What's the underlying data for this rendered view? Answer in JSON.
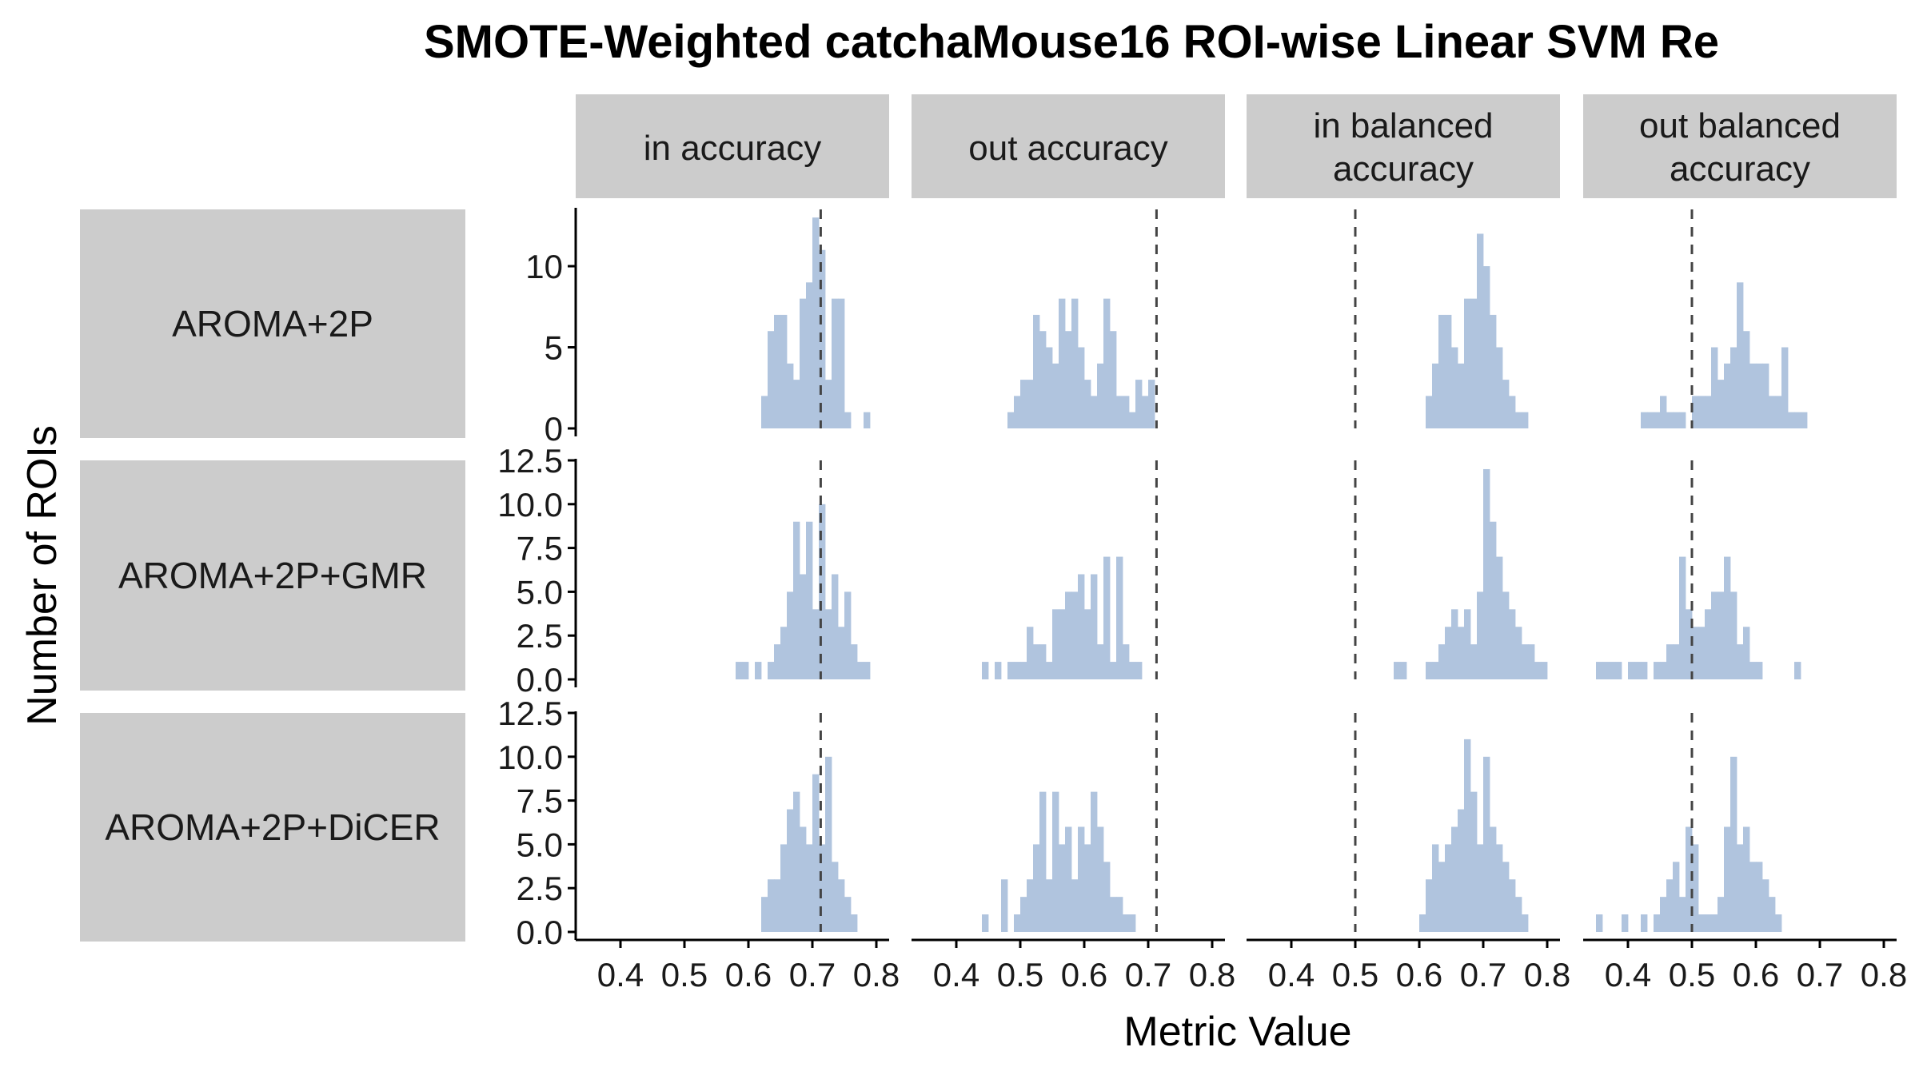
{
  "chart_data": {
    "type": "bar",
    "title": "SMOTE-Weighted catchaMouse16 ROI-wise Linear SVM Re",
    "xlabel": "Metric Value",
    "ylabel": "Number of ROIs",
    "x_ticks": [
      0.4,
      0.5,
      0.6,
      0.7,
      0.8
    ],
    "xlim": [
      0.33,
      0.82
    ],
    "bin_width": 0.01,
    "bar_color": "#b0c4de",
    "strip_color": "#cccccc",
    "reference_line": "dashed",
    "columns": [
      "in accuracy",
      "out accuracy",
      "in balanced accuracy",
      "out balanced accuracy"
    ],
    "rows": [
      "AROMA+2P",
      "AROMA+2P+GMR",
      "AROMA+2P+DiCER"
    ],
    "row_scales": [
      {
        "ylim": [
          0,
          13.5
        ],
        "ticks": [
          0,
          5,
          10
        ],
        "tick_labels": [
          "0",
          "5",
          "10"
        ]
      },
      {
        "ylim": [
          0,
          12.5
        ],
        "ticks": [
          0,
          2.5,
          5,
          7.5,
          10,
          12.5
        ],
        "tick_labels": [
          "0.0",
          "2.5",
          "5.0",
          "7.5",
          "10.0",
          "12.5"
        ]
      },
      {
        "ylim": [
          0,
          12.5
        ],
        "ticks": [
          0,
          2.5,
          5,
          7.5,
          10,
          12.5
        ],
        "tick_labels": [
          "0.0",
          "2.5",
          "5.0",
          "7.5",
          "10.0",
          "12.5"
        ]
      }
    ],
    "reference_values": [
      0.713,
      0.713,
      0.5,
      0.5
    ],
    "panels": [
      {
        "row": 0,
        "col": 0,
        "start": 0.62,
        "counts": [
          2,
          6,
          7,
          7,
          4,
          3,
          8,
          9,
          13,
          11,
          3,
          8,
          8,
          1,
          0,
          0,
          1
        ]
      },
      {
        "row": 0,
        "col": 1,
        "start": 0.48,
        "counts": [
          1,
          2,
          3,
          3,
          7,
          6,
          5,
          4,
          8,
          6,
          8,
          5,
          3,
          2,
          4,
          8,
          6,
          2,
          2,
          1,
          3,
          2,
          3
        ]
      },
      {
        "row": 0,
        "col": 2,
        "start": 0.61,
        "counts": [
          2,
          4,
          7,
          7,
          5,
          4,
          8,
          8,
          12,
          10,
          7,
          5,
          3,
          2,
          1,
          1
        ]
      },
      {
        "row": 0,
        "col": 3,
        "start": 0.42,
        "counts": [
          1,
          1,
          1,
          2,
          1,
          1,
          1,
          0,
          2,
          2,
          2,
          5,
          3,
          4,
          5,
          9,
          6,
          4,
          4,
          4,
          2,
          2,
          5,
          1,
          1,
          1
        ]
      }
    ],
    "panels_row2": [
      {
        "row": 1,
        "col": 0,
        "start": 0.58,
        "counts": [
          1,
          1,
          0,
          1,
          0,
          1,
          2,
          3,
          5,
          9,
          6,
          9,
          4,
          10,
          4,
          6,
          3,
          5,
          2,
          1,
          1
        ]
      },
      {
        "row": 1,
        "col": 1,
        "start": 0.44,
        "counts": [
          1,
          0,
          1,
          0,
          1,
          1,
          1,
          3,
          2,
          2,
          1,
          4,
          4,
          5,
          5,
          6,
          4,
          6,
          2,
          7,
          1,
          7,
          2,
          1,
          1
        ]
      },
      {
        "row": 1,
        "col": 2,
        "start": 0.56,
        "counts": [
          1,
          1,
          0,
          0,
          0,
          1,
          1,
          2,
          3,
          4,
          3,
          4,
          2,
          5,
          12,
          9,
          7,
          5,
          4,
          3,
          2,
          2,
          1,
          1
        ]
      },
      {
        "row": 1,
        "col": 3,
        "start": 0.35,
        "counts": [
          1,
          1,
          1,
          1,
          0,
          1,
          1,
          1,
          0,
          1,
          1,
          2,
          2,
          7,
          4,
          3,
          3,
          4,
          5,
          5,
          7,
          5,
          2,
          3,
          1,
          1,
          0,
          0,
          0,
          0,
          0,
          1
        ]
      }
    ],
    "panels_row3": [
      {
        "row": 2,
        "col": 0,
        "start": 0.62,
        "counts": [
          2,
          3,
          3,
          5,
          7,
          8,
          6,
          5,
          9,
          5,
          10,
          4,
          3,
          2,
          1
        ]
      },
      {
        "row": 2,
        "col": 1,
        "start": 0.44,
        "counts": [
          1,
          0,
          0,
          3,
          0,
          1,
          2,
          3,
          5,
          8,
          3,
          8,
          5,
          6,
          3,
          6,
          5,
          8,
          6,
          4,
          2,
          2,
          1,
          1
        ]
      },
      {
        "row": 2,
        "col": 2,
        "start": 0.6,
        "counts": [
          1,
          3,
          5,
          4,
          5,
          6,
          7,
          11,
          8,
          5,
          10,
          6,
          5,
          4,
          3,
          2,
          1
        ]
      },
      {
        "row": 2,
        "col": 3,
        "start": 0.35,
        "counts": [
          1,
          0,
          0,
          0,
          1,
          0,
          0,
          1,
          0,
          1,
          2,
          3,
          4,
          2,
          6,
          5,
          1,
          1,
          1,
          2,
          6,
          10,
          5,
          6,
          4,
          4,
          3,
          2,
          1
        ]
      }
    ]
  }
}
